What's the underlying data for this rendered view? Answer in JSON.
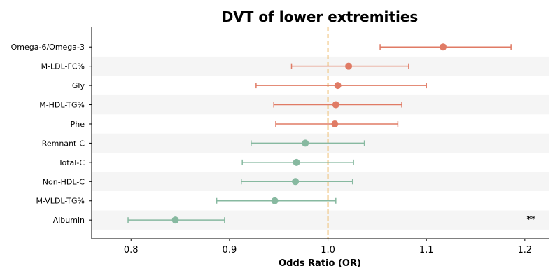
{
  "chart_data": {
    "type": "forest",
    "title": "DVT of lower extremities",
    "xlabel": "Odds Ratio (OR)",
    "xlim": [
      0.76,
      1.225
    ],
    "xticks": [
      0.8,
      0.9,
      1.0,
      1.1,
      1.2
    ],
    "xtick_labels": [
      "0.8",
      "0.9",
      "1.0",
      "1.1",
      "1.2"
    ],
    "reference_line": 1.0,
    "reference_color": "#f0c27b",
    "band_color": "#f5f5f5",
    "colors": {
      "positive": "#e07b65",
      "negative": "#87b9a0"
    },
    "rows": [
      {
        "label": "Omega-6/Omega-3",
        "or": 1.117,
        "lower": 1.053,
        "upper": 1.186,
        "direction": "positive",
        "annotation": ""
      },
      {
        "label": "M-LDL-FC%",
        "or": 1.021,
        "lower": 0.963,
        "upper": 1.082,
        "direction": "positive",
        "annotation": ""
      },
      {
        "label": "Gly",
        "or": 1.01,
        "lower": 0.927,
        "upper": 1.1,
        "direction": "positive",
        "annotation": ""
      },
      {
        "label": "M-HDL-TG%",
        "or": 1.008,
        "lower": 0.945,
        "upper": 1.075,
        "direction": "positive",
        "annotation": ""
      },
      {
        "label": "Phe",
        "or": 1.007,
        "lower": 0.947,
        "upper": 1.071,
        "direction": "positive",
        "annotation": ""
      },
      {
        "label": "Remnant-C",
        "or": 0.977,
        "lower": 0.922,
        "upper": 1.037,
        "direction": "negative",
        "annotation": ""
      },
      {
        "label": "Total-C",
        "or": 0.968,
        "lower": 0.913,
        "upper": 1.026,
        "direction": "negative",
        "annotation": ""
      },
      {
        "label": "Non-HDL-C",
        "or": 0.967,
        "lower": 0.912,
        "upper": 1.025,
        "direction": "negative",
        "annotation": ""
      },
      {
        "label": "M-VLDL-TG%",
        "or": 0.946,
        "lower": 0.887,
        "upper": 1.008,
        "direction": "negative",
        "annotation": ""
      },
      {
        "label": "Albumin",
        "or": 0.845,
        "lower": 0.797,
        "upper": 0.895,
        "direction": "negative",
        "annotation": "**"
      }
    ]
  }
}
